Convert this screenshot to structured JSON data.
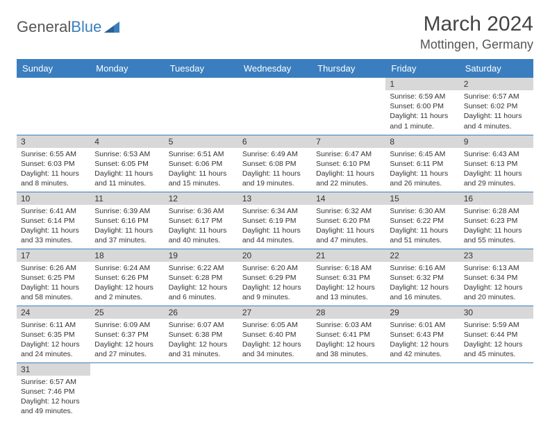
{
  "logo": {
    "textA": "General",
    "textB": "Blue"
  },
  "title": "March 2024",
  "location": "Mottingen, Germany",
  "colors": {
    "headerBg": "#3a7ebf",
    "headerText": "#ffffff",
    "dayNumBg": "#d8d8d8",
    "rowBorder": "#3a7ebf",
    "bodyText": "#333333"
  },
  "weekdays": [
    "Sunday",
    "Monday",
    "Tuesday",
    "Wednesday",
    "Thursday",
    "Friday",
    "Saturday"
  ],
  "weeks": [
    [
      null,
      null,
      null,
      null,
      null,
      {
        "n": "1",
        "sr": "Sunrise: 6:59 AM",
        "ss": "Sunset: 6:00 PM",
        "dl": "Daylight: 11 hours and 1 minute."
      },
      {
        "n": "2",
        "sr": "Sunrise: 6:57 AM",
        "ss": "Sunset: 6:02 PM",
        "dl": "Daylight: 11 hours and 4 minutes."
      }
    ],
    [
      {
        "n": "3",
        "sr": "Sunrise: 6:55 AM",
        "ss": "Sunset: 6:03 PM",
        "dl": "Daylight: 11 hours and 8 minutes."
      },
      {
        "n": "4",
        "sr": "Sunrise: 6:53 AM",
        "ss": "Sunset: 6:05 PM",
        "dl": "Daylight: 11 hours and 11 minutes."
      },
      {
        "n": "5",
        "sr": "Sunrise: 6:51 AM",
        "ss": "Sunset: 6:06 PM",
        "dl": "Daylight: 11 hours and 15 minutes."
      },
      {
        "n": "6",
        "sr": "Sunrise: 6:49 AM",
        "ss": "Sunset: 6:08 PM",
        "dl": "Daylight: 11 hours and 19 minutes."
      },
      {
        "n": "7",
        "sr": "Sunrise: 6:47 AM",
        "ss": "Sunset: 6:10 PM",
        "dl": "Daylight: 11 hours and 22 minutes."
      },
      {
        "n": "8",
        "sr": "Sunrise: 6:45 AM",
        "ss": "Sunset: 6:11 PM",
        "dl": "Daylight: 11 hours and 26 minutes."
      },
      {
        "n": "9",
        "sr": "Sunrise: 6:43 AM",
        "ss": "Sunset: 6:13 PM",
        "dl": "Daylight: 11 hours and 29 minutes."
      }
    ],
    [
      {
        "n": "10",
        "sr": "Sunrise: 6:41 AM",
        "ss": "Sunset: 6:14 PM",
        "dl": "Daylight: 11 hours and 33 minutes."
      },
      {
        "n": "11",
        "sr": "Sunrise: 6:39 AM",
        "ss": "Sunset: 6:16 PM",
        "dl": "Daylight: 11 hours and 37 minutes."
      },
      {
        "n": "12",
        "sr": "Sunrise: 6:36 AM",
        "ss": "Sunset: 6:17 PM",
        "dl": "Daylight: 11 hours and 40 minutes."
      },
      {
        "n": "13",
        "sr": "Sunrise: 6:34 AM",
        "ss": "Sunset: 6:19 PM",
        "dl": "Daylight: 11 hours and 44 minutes."
      },
      {
        "n": "14",
        "sr": "Sunrise: 6:32 AM",
        "ss": "Sunset: 6:20 PM",
        "dl": "Daylight: 11 hours and 47 minutes."
      },
      {
        "n": "15",
        "sr": "Sunrise: 6:30 AM",
        "ss": "Sunset: 6:22 PM",
        "dl": "Daylight: 11 hours and 51 minutes."
      },
      {
        "n": "16",
        "sr": "Sunrise: 6:28 AM",
        "ss": "Sunset: 6:23 PM",
        "dl": "Daylight: 11 hours and 55 minutes."
      }
    ],
    [
      {
        "n": "17",
        "sr": "Sunrise: 6:26 AM",
        "ss": "Sunset: 6:25 PM",
        "dl": "Daylight: 11 hours and 58 minutes."
      },
      {
        "n": "18",
        "sr": "Sunrise: 6:24 AM",
        "ss": "Sunset: 6:26 PM",
        "dl": "Daylight: 12 hours and 2 minutes."
      },
      {
        "n": "19",
        "sr": "Sunrise: 6:22 AM",
        "ss": "Sunset: 6:28 PM",
        "dl": "Daylight: 12 hours and 6 minutes."
      },
      {
        "n": "20",
        "sr": "Sunrise: 6:20 AM",
        "ss": "Sunset: 6:29 PM",
        "dl": "Daylight: 12 hours and 9 minutes."
      },
      {
        "n": "21",
        "sr": "Sunrise: 6:18 AM",
        "ss": "Sunset: 6:31 PM",
        "dl": "Daylight: 12 hours and 13 minutes."
      },
      {
        "n": "22",
        "sr": "Sunrise: 6:16 AM",
        "ss": "Sunset: 6:32 PM",
        "dl": "Daylight: 12 hours and 16 minutes."
      },
      {
        "n": "23",
        "sr": "Sunrise: 6:13 AM",
        "ss": "Sunset: 6:34 PM",
        "dl": "Daylight: 12 hours and 20 minutes."
      }
    ],
    [
      {
        "n": "24",
        "sr": "Sunrise: 6:11 AM",
        "ss": "Sunset: 6:35 PM",
        "dl": "Daylight: 12 hours and 24 minutes."
      },
      {
        "n": "25",
        "sr": "Sunrise: 6:09 AM",
        "ss": "Sunset: 6:37 PM",
        "dl": "Daylight: 12 hours and 27 minutes."
      },
      {
        "n": "26",
        "sr": "Sunrise: 6:07 AM",
        "ss": "Sunset: 6:38 PM",
        "dl": "Daylight: 12 hours and 31 minutes."
      },
      {
        "n": "27",
        "sr": "Sunrise: 6:05 AM",
        "ss": "Sunset: 6:40 PM",
        "dl": "Daylight: 12 hours and 34 minutes."
      },
      {
        "n": "28",
        "sr": "Sunrise: 6:03 AM",
        "ss": "Sunset: 6:41 PM",
        "dl": "Daylight: 12 hours and 38 minutes."
      },
      {
        "n": "29",
        "sr": "Sunrise: 6:01 AM",
        "ss": "Sunset: 6:43 PM",
        "dl": "Daylight: 12 hours and 42 minutes."
      },
      {
        "n": "30",
        "sr": "Sunrise: 5:59 AM",
        "ss": "Sunset: 6:44 PM",
        "dl": "Daylight: 12 hours and 45 minutes."
      }
    ],
    [
      {
        "n": "31",
        "sr": "Sunrise: 6:57 AM",
        "ss": "Sunset: 7:46 PM",
        "dl": "Daylight: 12 hours and 49 minutes."
      },
      null,
      null,
      null,
      null,
      null,
      null
    ]
  ]
}
